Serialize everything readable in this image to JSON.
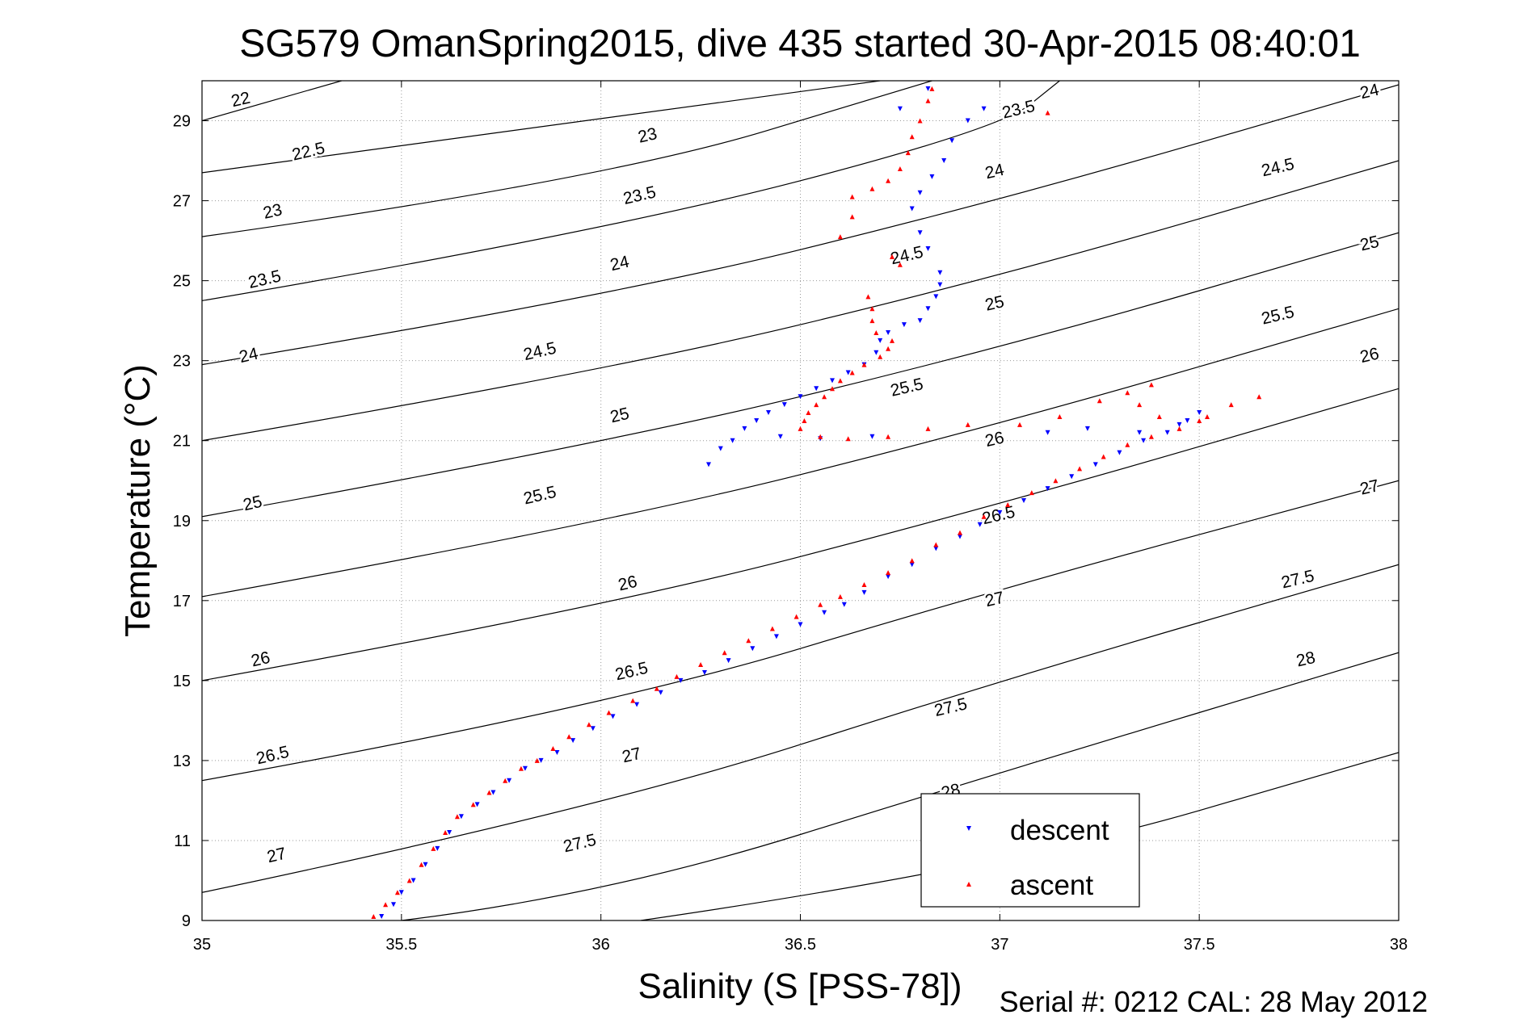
{
  "chart_data": {
    "type": "scatter",
    "title": "SG579 OmanSpring2015, dive 435 started 30-Apr-2015 08:40:01",
    "xlabel": "Salinity (S [PSS-78])",
    "ylabel": "Temperature (°C)",
    "xlim": [
      35,
      38
    ],
    "ylim": [
      9,
      30
    ],
    "x_ticks": [
      35,
      35.5,
      36,
      36.5,
      37,
      37.5,
      38
    ],
    "x_tick_labels": [
      "35",
      "35.5",
      "36",
      "36.5",
      "37",
      "37.5",
      "38"
    ],
    "y_ticks": [
      9,
      11,
      13,
      15,
      17,
      19,
      21,
      23,
      25,
      27,
      29
    ],
    "y_tick_labels": [
      "9",
      "11",
      "13",
      "15",
      "17",
      "19",
      "21",
      "23",
      "25",
      "27",
      "29"
    ],
    "grid": true,
    "legend_position": "bottom-right",
    "footer": "Serial #: 0212  CAL: 28 May 2012",
    "isopycnals": {
      "color": "#000000",
      "note": "sigma-theta density contours",
      "lines": [
        {
          "sigma": 22,
          "points": [
            [
              35,
              29.0
            ],
            [
              35.35,
              30.0
            ]
          ]
        },
        {
          "sigma": 22.5,
          "points": [
            [
              35,
              27.7
            ],
            [
              36.7,
              30.0
            ]
          ]
        },
        {
          "sigma": 23,
          "points": [
            [
              35,
              26.1
            ],
            [
              36.0,
              27.5
            ],
            [
              36.83,
              30.0
            ]
          ]
        },
        {
          "sigma": 23.5,
          "points": [
            [
              35,
              24.5
            ],
            [
              36.0,
              26.2
            ],
            [
              37.0,
              28.8
            ],
            [
              37.15,
              30.0
            ]
          ]
        },
        {
          "sigma": 24,
          "points": [
            [
              35,
              22.9
            ],
            [
              36.0,
              24.55
            ],
            [
              37.0,
              27.0
            ],
            [
              38.0,
              29.9
            ]
          ]
        },
        {
          "sigma": 24.5,
          "points": [
            [
              35,
              21.0
            ],
            [
              36.0,
              22.7
            ],
            [
              37.0,
              25.1
            ],
            [
              38.0,
              28.0
            ]
          ]
        },
        {
          "sigma": 25,
          "points": [
            [
              35,
              19.1
            ],
            [
              36.0,
              20.9
            ],
            [
              37.0,
              23.3
            ],
            [
              38.0,
              26.2
            ]
          ]
        },
        {
          "sigma": 25.5,
          "points": [
            [
              35,
              17.1
            ],
            [
              36.0,
              18.9
            ],
            [
              37.0,
              21.4
            ],
            [
              38.0,
              24.3
            ]
          ]
        },
        {
          "sigma": 26,
          "points": [
            [
              35,
              15.0
            ],
            [
              36.0,
              16.8
            ],
            [
              37.0,
              19.4
            ],
            [
              38.0,
              22.3
            ]
          ]
        },
        {
          "sigma": 26.5,
          "points": [
            [
              35,
              12.5
            ],
            [
              36.0,
              14.3
            ],
            [
              37.0,
              17.3
            ],
            [
              38.0,
              20.0
            ]
          ]
        },
        {
          "sigma": 27,
          "points": [
            [
              35,
              9.7
            ],
            [
              36.0,
              11.8
            ],
            [
              37.0,
              15.0
            ],
            [
              38.0,
              17.9
            ]
          ]
        },
        {
          "sigma": 27.5,
          "points": [
            [
              35.5,
              9.0
            ],
            [
              36.0,
              9.6
            ],
            [
              37.0,
              12.7
            ],
            [
              38.0,
              15.7
            ]
          ]
        },
        {
          "sigma": 28,
          "points": [
            [
              36.1,
              9.0
            ],
            [
              37.0,
              10.3
            ],
            [
              38.0,
              13.2
            ]
          ]
        }
      ],
      "labels": [
        {
          "text": "22",
          "x": 35.1,
          "y": 29.4
        },
        {
          "text": "22.5",
          "x": 35.27,
          "y": 28.1
        },
        {
          "text": "23",
          "x": 35.18,
          "y": 26.6
        },
        {
          "text": "23.5",
          "x": 35.16,
          "y": 24.9
        },
        {
          "text": "24",
          "x": 35.12,
          "y": 23.0
        },
        {
          "text": "25",
          "x": 35.13,
          "y": 19.3
        },
        {
          "text": "26",
          "x": 35.15,
          "y": 15.4
        },
        {
          "text": "26.5",
          "x": 35.18,
          "y": 13.0
        },
        {
          "text": "27",
          "x": 35.19,
          "y": 10.5
        },
        {
          "text": "23",
          "x": 36.12,
          "y": 28.5
        },
        {
          "text": "23.5",
          "x": 36.1,
          "y": 27.0
        },
        {
          "text": "24",
          "x": 36.05,
          "y": 25.3
        },
        {
          "text": "24.5",
          "x": 35.85,
          "y": 23.1
        },
        {
          "text": "25",
          "x": 36.05,
          "y": 21.5
        },
        {
          "text": "25.5",
          "x": 35.85,
          "y": 19.5
        },
        {
          "text": "26",
          "x": 36.07,
          "y": 17.3
        },
        {
          "text": "26.5",
          "x": 36.08,
          "y": 15.1
        },
        {
          "text": "27",
          "x": 36.08,
          "y": 13.0
        },
        {
          "text": "27.5",
          "x": 35.95,
          "y": 10.8
        },
        {
          "text": "23.5",
          "x": 37.05,
          "y": 29.15
        },
        {
          "text": "24",
          "x": 36.99,
          "y": 27.6
        },
        {
          "text": "24.5",
          "x": 36.77,
          "y": 25.5
        },
        {
          "text": "25",
          "x": 36.99,
          "y": 24.3
        },
        {
          "text": "25.5",
          "x": 36.77,
          "y": 22.2
        },
        {
          "text": "26",
          "x": 36.99,
          "y": 20.9
        },
        {
          "text": "26.5",
          "x": 37.0,
          "y": 19.0
        },
        {
          "text": "27",
          "x": 36.99,
          "y": 16.9
        },
        {
          "text": "27.5",
          "x": 36.88,
          "y": 14.2
        },
        {
          "text": "28",
          "x": 36.88,
          "y": 12.1
        },
        {
          "text": "24",
          "x": 37.93,
          "y": 29.6
        },
        {
          "text": "24.5",
          "x": 37.7,
          "y": 27.7
        },
        {
          "text": "25",
          "x": 37.93,
          "y": 25.8
        },
        {
          "text": "25.5",
          "x": 37.7,
          "y": 24.0
        },
        {
          "text": "26",
          "x": 37.93,
          "y": 23.0
        },
        {
          "text": "27",
          "x": 37.93,
          "y": 19.7
        },
        {
          "text": "27.5",
          "x": 37.75,
          "y": 17.4
        },
        {
          "text": "28",
          "x": 37.77,
          "y": 15.4
        }
      ]
    },
    "series": [
      {
        "name": "descent",
        "color": "#0000ff",
        "marker": "triangle-down",
        "points": [
          [
            35.45,
            9.1
          ],
          [
            35.48,
            9.4
          ],
          [
            35.5,
            9.7
          ],
          [
            35.53,
            10.0
          ],
          [
            35.56,
            10.4
          ],
          [
            35.59,
            10.8
          ],
          [
            35.62,
            11.2
          ],
          [
            35.65,
            11.6
          ],
          [
            35.69,
            11.9
          ],
          [
            35.73,
            12.2
          ],
          [
            35.77,
            12.5
          ],
          [
            35.81,
            12.8
          ],
          [
            35.85,
            13.0
          ],
          [
            35.89,
            13.2
          ],
          [
            35.93,
            13.5
          ],
          [
            35.98,
            13.8
          ],
          [
            36.03,
            14.1
          ],
          [
            36.09,
            14.4
          ],
          [
            36.15,
            14.7
          ],
          [
            36.2,
            15.0
          ],
          [
            36.26,
            15.2
          ],
          [
            36.32,
            15.5
          ],
          [
            36.38,
            15.8
          ],
          [
            36.44,
            16.1
          ],
          [
            36.5,
            16.4
          ],
          [
            36.56,
            16.7
          ],
          [
            36.61,
            16.9
          ],
          [
            36.66,
            17.2
          ],
          [
            36.72,
            17.6
          ],
          [
            36.78,
            17.9
          ],
          [
            36.84,
            18.3
          ],
          [
            36.9,
            18.6
          ],
          [
            36.95,
            18.9
          ],
          [
            37.0,
            19.2
          ],
          [
            37.06,
            19.5
          ],
          [
            37.12,
            19.8
          ],
          [
            37.18,
            20.1
          ],
          [
            37.24,
            20.4
          ],
          [
            37.3,
            20.7
          ],
          [
            37.36,
            21.0
          ],
          [
            37.42,
            21.2
          ],
          [
            37.47,
            21.5
          ],
          [
            37.5,
            21.7
          ],
          [
            36.27,
            20.4
          ],
          [
            36.3,
            20.8
          ],
          [
            36.33,
            21.0
          ],
          [
            36.36,
            21.3
          ],
          [
            36.39,
            21.5
          ],
          [
            36.42,
            21.7
          ],
          [
            36.46,
            21.9
          ],
          [
            36.5,
            22.1
          ],
          [
            36.54,
            22.3
          ],
          [
            36.58,
            22.5
          ],
          [
            36.62,
            22.7
          ],
          [
            36.66,
            22.9
          ],
          [
            36.69,
            23.2
          ],
          [
            36.7,
            23.5
          ],
          [
            36.72,
            23.7
          ],
          [
            36.76,
            23.9
          ],
          [
            36.8,
            24.0
          ],
          [
            36.82,
            24.3
          ],
          [
            36.84,
            24.6
          ],
          [
            36.85,
            24.9
          ],
          [
            36.85,
            25.2
          ],
          [
            36.82,
            25.8
          ],
          [
            36.8,
            26.2
          ],
          [
            36.78,
            26.8
          ],
          [
            36.8,
            27.2
          ],
          [
            36.83,
            27.6
          ],
          [
            36.86,
            28.0
          ],
          [
            36.88,
            28.5
          ],
          [
            36.92,
            29.0
          ],
          [
            36.96,
            29.3
          ],
          [
            36.82,
            29.8
          ],
          [
            36.75,
            29.3
          ],
          [
            36.45,
            21.1
          ],
          [
            36.55,
            21.05
          ],
          [
            36.68,
            21.1
          ],
          [
            37.12,
            21.2
          ],
          [
            37.22,
            21.3
          ],
          [
            37.35,
            21.2
          ],
          [
            37.45,
            21.4
          ]
        ]
      },
      {
        "name": "ascent",
        "color": "#ff0000",
        "marker": "triangle-up",
        "points": [
          [
            35.43,
            9.1
          ],
          [
            35.46,
            9.4
          ],
          [
            35.49,
            9.7
          ],
          [
            35.52,
            10.0
          ],
          [
            35.55,
            10.4
          ],
          [
            35.58,
            10.8
          ],
          [
            35.61,
            11.2
          ],
          [
            35.64,
            11.6
          ],
          [
            35.68,
            11.9
          ],
          [
            35.72,
            12.2
          ],
          [
            35.76,
            12.5
          ],
          [
            35.8,
            12.8
          ],
          [
            35.84,
            13.0
          ],
          [
            35.88,
            13.3
          ],
          [
            35.92,
            13.6
          ],
          [
            35.97,
            13.9
          ],
          [
            36.02,
            14.2
          ],
          [
            36.08,
            14.5
          ],
          [
            36.14,
            14.8
          ],
          [
            36.19,
            15.1
          ],
          [
            36.25,
            15.4
          ],
          [
            36.31,
            15.7
          ],
          [
            36.37,
            16.0
          ],
          [
            36.43,
            16.3
          ],
          [
            36.49,
            16.6
          ],
          [
            36.55,
            16.9
          ],
          [
            36.6,
            17.1
          ],
          [
            36.66,
            17.4
          ],
          [
            36.72,
            17.7
          ],
          [
            36.78,
            18.0
          ],
          [
            36.84,
            18.4
          ],
          [
            36.9,
            18.7
          ],
          [
            36.96,
            19.1
          ],
          [
            37.02,
            19.4
          ],
          [
            37.08,
            19.7
          ],
          [
            37.14,
            20.0
          ],
          [
            37.2,
            20.3
          ],
          [
            37.26,
            20.6
          ],
          [
            37.32,
            20.9
          ],
          [
            37.38,
            21.1
          ],
          [
            37.45,
            21.3
          ],
          [
            37.52,
            21.6
          ],
          [
            37.58,
            21.9
          ],
          [
            37.65,
            22.1
          ],
          [
            36.5,
            21.3
          ],
          [
            36.51,
            21.5
          ],
          [
            36.52,
            21.7
          ],
          [
            36.54,
            21.9
          ],
          [
            36.56,
            22.1
          ],
          [
            36.58,
            22.3
          ],
          [
            36.6,
            22.5
          ],
          [
            36.63,
            22.7
          ],
          [
            36.66,
            22.9
          ],
          [
            36.7,
            23.1
          ],
          [
            36.72,
            23.3
          ],
          [
            36.73,
            23.5
          ],
          [
            36.69,
            23.7
          ],
          [
            36.68,
            24.0
          ],
          [
            36.68,
            24.3
          ],
          [
            36.67,
            24.6
          ],
          [
            36.55,
            21.1
          ],
          [
            36.62,
            21.05
          ],
          [
            36.72,
            21.1
          ],
          [
            36.82,
            21.3
          ],
          [
            36.92,
            21.4
          ],
          [
            37.05,
            21.4
          ],
          [
            37.15,
            21.6
          ],
          [
            37.25,
            22.0
          ],
          [
            37.32,
            22.2
          ],
          [
            37.38,
            22.4
          ],
          [
            37.35,
            21.9
          ],
          [
            37.4,
            21.6
          ],
          [
            37.5,
            21.5
          ],
          [
            36.6,
            26.1
          ],
          [
            36.63,
            26.6
          ],
          [
            36.63,
            27.1
          ],
          [
            36.68,
            27.3
          ],
          [
            36.72,
            27.5
          ],
          [
            36.75,
            27.8
          ],
          [
            36.77,
            28.2
          ],
          [
            36.78,
            28.6
          ],
          [
            36.8,
            29.0
          ],
          [
            36.82,
            29.5
          ],
          [
            36.83,
            29.8
          ],
          [
            36.73,
            25.6
          ],
          [
            36.75,
            25.4
          ],
          [
            37.12,
            29.2
          ]
        ]
      }
    ]
  }
}
